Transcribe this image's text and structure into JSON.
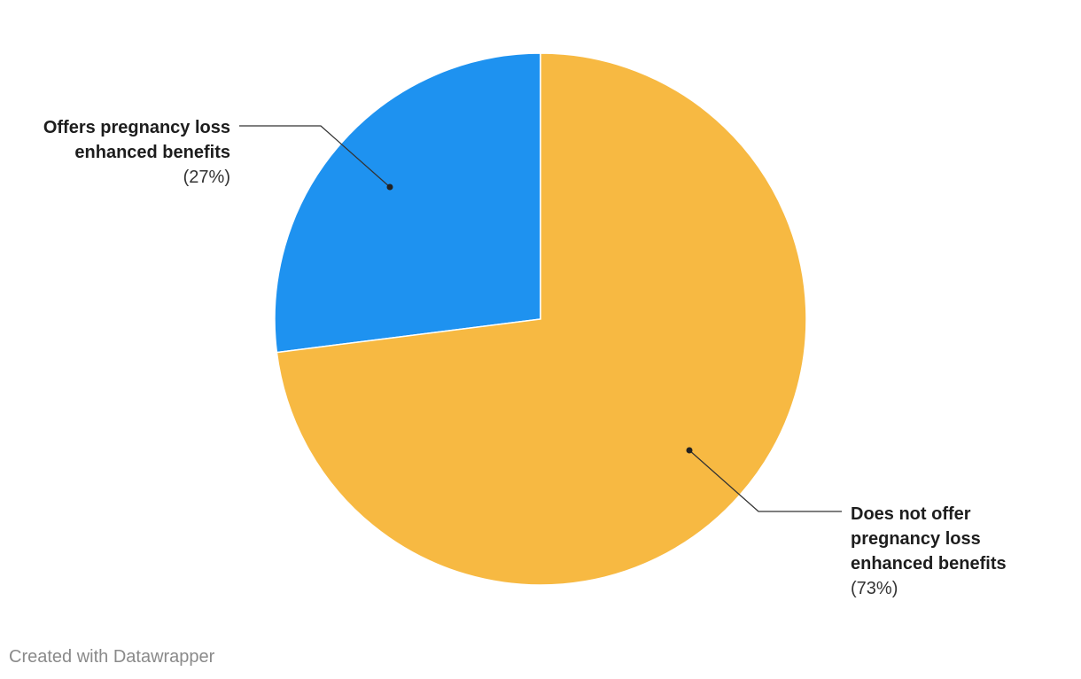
{
  "chart_data": {
    "type": "pie",
    "slices": [
      {
        "label_lines": [
          "Offers pregnancy loss",
          "enhanced benefits"
        ],
        "value": 27,
        "value_label": "(27%)",
        "color": "#1e92f0"
      },
      {
        "label_lines": [
          "Does not offer",
          "pregnancy loss",
          "enhanced benefits"
        ],
        "value": 73,
        "value_label": "(73%)",
        "color": "#f7b942"
      }
    ]
  },
  "footer": {
    "credit": "Created with Datawrapper"
  }
}
